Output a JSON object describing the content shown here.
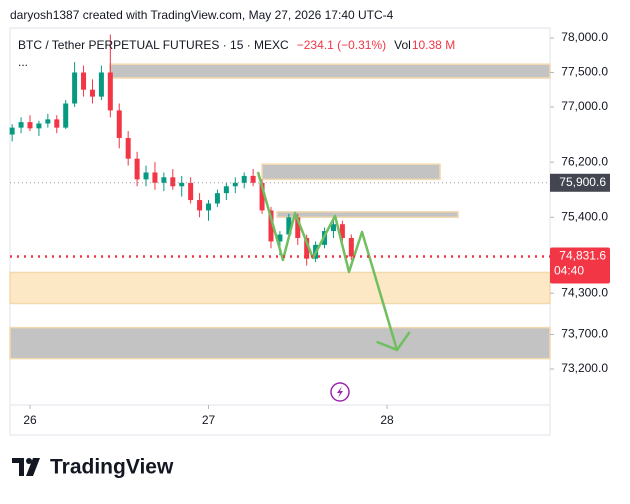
{
  "header": {
    "attribution": "daryosh1387 created with TradingView.com, May 27, 2026 17:40 UTC-4",
    "brand": "TradingView"
  },
  "chart_data": {
    "type": "candlestick",
    "title": "BTC / Tether PERPETUAL FUTURES · 15 · MEXC",
    "change": "−234.1 (−0.31%)",
    "volume_label": "Vol",
    "volume": "10.38 M",
    "more": "...",
    "x": [
      25.9,
      25.95,
      26.0,
      26.05,
      26.1,
      26.15,
      26.2,
      26.25,
      26.3,
      26.35,
      26.4,
      26.45,
      26.5,
      26.55,
      26.6,
      26.65,
      26.7,
      26.75,
      26.8,
      26.85,
      26.9,
      26.95,
      27.0,
      27.05,
      27.1,
      27.15,
      27.2,
      27.25,
      27.3,
      27.35,
      27.4,
      27.45,
      27.5,
      27.55,
      27.6,
      27.65,
      27.7,
      27.75,
      27.8
    ],
    "open": [
      76600,
      76700,
      76780,
      76690,
      76760,
      76820,
      76700,
      77050,
      77500,
      77250,
      77150,
      77500,
      76950,
      76550,
      76250,
      75950,
      76050,
      75900,
      75980,
      75850,
      75900,
      75650,
      75500,
      75600,
      75750,
      75850,
      75900,
      76000,
      75900,
      75500,
      75050,
      75150,
      75400,
      75100,
      74800,
      75000,
      75200,
      75300,
      75100
    ],
    "high": [
      76750,
      76850,
      76880,
      76800,
      76900,
      76880,
      77100,
      77650,
      77600,
      77400,
      77600,
      78050,
      77050,
      76650,
      76350,
      76150,
      76200,
      76050,
      76100,
      76000,
      75980,
      75750,
      75650,
      75800,
      75900,
      75980,
      76050,
      76100,
      75950,
      75550,
      75200,
      75450,
      75450,
      75150,
      75050,
      75250,
      75350,
      75350,
      75150
    ],
    "low": [
      76500,
      76620,
      76650,
      76580,
      76700,
      76620,
      76680,
      77000,
      77150,
      77050,
      77100,
      76850,
      76400,
      76150,
      75850,
      75850,
      75800,
      75780,
      75800,
      75700,
      75600,
      75400,
      75350,
      75550,
      75650,
      75750,
      75820,
      75850,
      75450,
      74950,
      74850,
      75100,
      75000,
      74700,
      74750,
      74950,
      75100,
      75050,
      74780
    ],
    "close": [
      76700,
      76780,
      76690,
      76760,
      76820,
      76700,
      77050,
      77500,
      77250,
      77150,
      77500,
      76950,
      76550,
      76250,
      75950,
      76050,
      75900,
      75980,
      75850,
      75900,
      75650,
      75500,
      75600,
      75750,
      75850,
      75900,
      76000,
      75900,
      75500,
      75050,
      75150,
      75400,
      75100,
      74800,
      75000,
      75200,
      75300,
      75100,
      74831.6
    ],
    "up_color": "#089981",
    "down_color": "#f23645",
    "xlim": [
      25.888,
      28.913
    ],
    "xticks": [
      26,
      27,
      28
    ],
    "ylim": [
      72678,
      78116
    ],
    "yticks": [
      {
        "value": 78000,
        "label": "78,000.0"
      },
      {
        "value": 77500,
        "label": "77,500.0"
      },
      {
        "value": 77000,
        "label": "77,000.0"
      },
      {
        "value": 76200,
        "label": "76,200.0"
      },
      {
        "value": 75400,
        "label": "75,400.0"
      },
      {
        "value": 74300,
        "label": "74,300.0"
      },
      {
        "value": 73700,
        "label": "73,700.0"
      },
      {
        "value": 73200,
        "label": "73,200.0"
      }
    ],
    "last_price": {
      "value": 74831.6,
      "label": "74,831.6"
    },
    "countdown": "04:40",
    "marker_price": {
      "value": 75900.6,
      "label": "75,900.6"
    },
    "zones": [
      {
        "from": 26.448,
        "to": 28.913,
        "top": 77620,
        "bottom": 77420,
        "color": "#c3c3c3"
      },
      {
        "from": 27.3,
        "to": 28.297,
        "top": 76170,
        "bottom": 75950,
        "color": "#c3c3c3"
      },
      {
        "from": 27.384,
        "to": 28.398,
        "top": 75480,
        "bottom": 75400,
        "color": "#c3c3c3"
      },
      {
        "from": 25.888,
        "to": 28.913,
        "top": 74600,
        "bottom": 74150,
        "color": "#fde8c6"
      },
      {
        "from": 25.888,
        "to": 28.913,
        "top": 73800,
        "bottom": 73350,
        "color": "#c3c3c3"
      }
    ],
    "projection": {
      "color": "#6fbf5e",
      "x": [
        27.277,
        27.417,
        27.485,
        27.585,
        27.709,
        27.787,
        27.86,
        28.056
      ],
      "y": [
        76057,
        74781,
        75462,
        74810,
        75419,
        74607,
        75187,
        73476
      ]
    }
  }
}
